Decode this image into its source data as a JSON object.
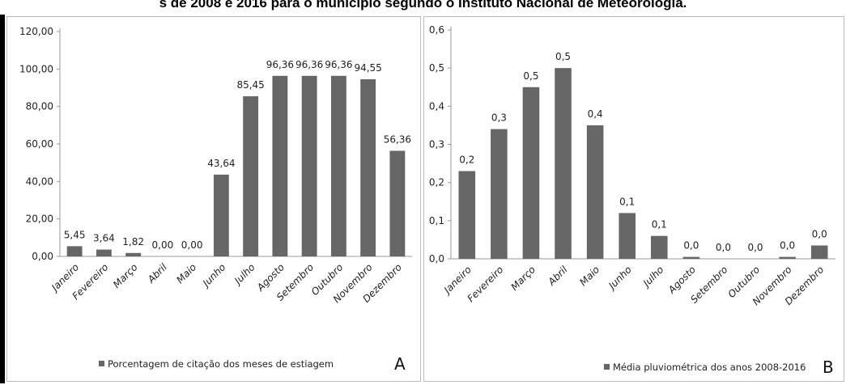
{
  "caption": "s de 2008 e 2016 para o município segundo o Instituto Nacional de Meteorologia.",
  "chart_data": [
    {
      "type": "bar",
      "panel_letter": "A",
      "categories": [
        "Janeiro",
        "Fevereiro",
        "Março",
        "Abril",
        "Maio",
        "Junho",
        "Julho",
        "Agosto",
        "Setembro",
        "Outubro",
        "Novembro",
        "Dezembro"
      ],
      "series": [
        {
          "name": "Porcentagem de citação dos meses de estiagem",
          "values": [
            5.45,
            3.64,
            1.82,
            0.0,
            0.0,
            43.64,
            85.45,
            96.36,
            96.36,
            96.36,
            94.55,
            56.36
          ]
        }
      ],
      "data_labels": [
        "5,45",
        "3,64",
        "1,82",
        "0,00",
        "0,00",
        "43,64",
        "85,45",
        "96,36",
        "96,36",
        "96,36",
        "94,55",
        "56,36"
      ],
      "y_ticks": [
        "0,00",
        "20,00",
        "40,00",
        "60,00",
        "80,00",
        "100,00",
        "120,00"
      ],
      "ylim": [
        0,
        120
      ],
      "bar_color": "#666666",
      "grid": false,
      "legend_position": "bottom"
    },
    {
      "type": "bar",
      "panel_letter": "B",
      "categories": [
        "Janeiro",
        "Fevereiro",
        "Março",
        "Abril",
        "Maio",
        "Junho",
        "Julho",
        "Agosto",
        "Setembro",
        "Outubro",
        "Novembro",
        "Dezembro"
      ],
      "series": [
        {
          "name": "Média pluviométrica dos anos 2008-2016",
          "values": [
            0.23,
            0.34,
            0.45,
            0.5,
            0.35,
            0.12,
            0.06,
            0.005,
            0.0,
            0.0,
            0.005,
            0.035
          ]
        }
      ],
      "data_labels": [
        "0,2",
        "0,3",
        "0,5",
        "0,5",
        "0,4",
        "0,1",
        "0,1",
        "0,0",
        "0,0",
        "0,0",
        "0,0",
        "0,0"
      ],
      "y_ticks": [
        "0,0",
        "0,1",
        "0,2",
        "0,3",
        "0,4",
        "0,5",
        "0,6"
      ],
      "ylim": [
        0,
        0.6
      ],
      "bar_color": "#666666",
      "grid": false,
      "legend_position": "bottom"
    }
  ]
}
